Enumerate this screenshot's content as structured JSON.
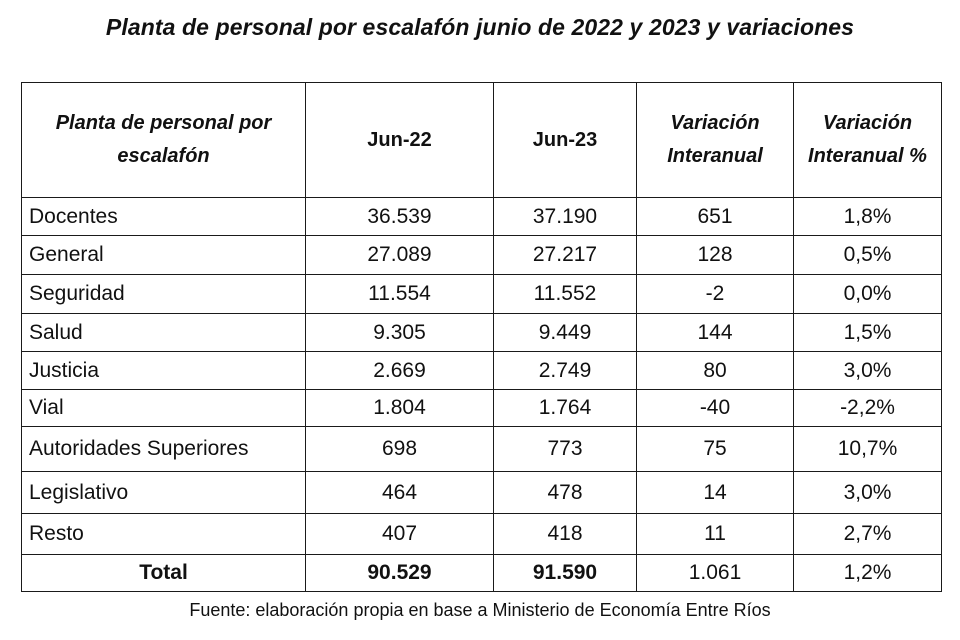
{
  "title": "Planta de personal por escalafón junio de 2022 y 2023 y variaciones",
  "table": {
    "headers": {
      "col1": "Planta de personal por escalafón",
      "col2": "Jun-22",
      "col3": "Jun-23",
      "col4": "Variación Interanual",
      "col5": "Variación Interanual %"
    },
    "rows": [
      {
        "label": "Docentes",
        "jun22": "36.539",
        "jun23": "37.190",
        "var": "651",
        "var_pct": "1,8%"
      },
      {
        "label": "General",
        "jun22": "27.089",
        "jun23": "27.217",
        "var": "128",
        "var_pct": "0,5%"
      },
      {
        "label": "Seguridad",
        "jun22": "11.554",
        "jun23": "11.552",
        "var": "-2",
        "var_pct": "0,0%"
      },
      {
        "label": "Salud",
        "jun22": "9.305",
        "jun23": "9.449",
        "var": "144",
        "var_pct": "1,5%"
      },
      {
        "label": "Justicia",
        "jun22": "2.669",
        "jun23": "2.749",
        "var": "80",
        "var_pct": "3,0%"
      },
      {
        "label": "Vial",
        "jun22": "1.804",
        "jun23": "1.764",
        "var": "-40",
        "var_pct": "-2,2%"
      },
      {
        "label": "Autoridades Superiores",
        "jun22": "698",
        "jun23": "773",
        "var": "75",
        "var_pct": "10,7%"
      },
      {
        "label": "Legislativo",
        "jun22": "464",
        "jun23": "478",
        "var": "14",
        "var_pct": "3,0%"
      },
      {
        "label": "Resto",
        "jun22": "407",
        "jun23": "418",
        "var": "11",
        "var_pct": "2,7%"
      }
    ],
    "total": {
      "label": "Total",
      "jun22": "90.529",
      "jun23": "91.590",
      "var": "1.061",
      "var_pct": "1,2%"
    }
  },
  "source": "Fuente: elaboración propia en base a Ministerio de Economía Entre Ríos"
}
